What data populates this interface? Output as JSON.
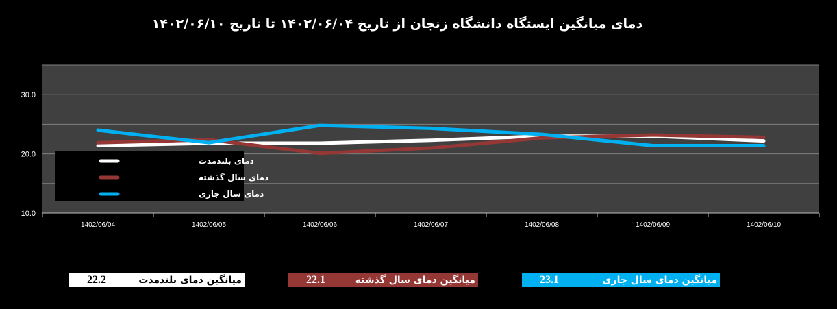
{
  "title": "دمای میانگین ایستگاه دانشگاه زنجان از تاریخ ۱۴۰۲/۰۶/۰۴  تا تاریخ ۱۴۰۲/۰۶/۱۰",
  "colors": {
    "longterm": "#ffffff",
    "lastyear": "#953735",
    "current": "#00b0f0",
    "plot_bg": "#404040",
    "grid": "#7f7f7f"
  },
  "chart_data": {
    "type": "line",
    "categories": [
      "1402/06/04",
      "1402/06/05",
      "1402/06/06",
      "1402/06/07",
      "1402/06/08",
      "1402/06/09",
      "1402/06/10"
    ],
    "ylim": [
      10,
      35
    ],
    "yticks": [
      "10.0",
      "20.0",
      "30.0"
    ],
    "grid": true,
    "legend_position": "left",
    "series": [
      {
        "name": "دمای بلندمدت",
        "color": "#ffffff",
        "values": [
          21.4,
          21.8,
          21.8,
          22.3,
          23.0,
          23.0,
          22.2
        ]
      },
      {
        "name": "دمای سال گذشته",
        "color": "#953735",
        "values": [
          21.9,
          22.4,
          20.1,
          21.0,
          22.7,
          23.2,
          22.8
        ]
      },
      {
        "name": "دمای سال جاری",
        "color": "#00b0f0",
        "values": [
          24.0,
          21.9,
          24.8,
          24.3,
          23.3,
          21.4,
          21.4
        ]
      }
    ]
  },
  "averages": {
    "longterm": {
      "label": "میانگین دمای بلندمدت",
      "value": "22.2"
    },
    "lastyear": {
      "label": "میانگین دمای سال گذشته",
      "value": "22.1"
    },
    "current": {
      "label": "میانگین دمای سال جاری",
      "value": "23.1"
    }
  }
}
